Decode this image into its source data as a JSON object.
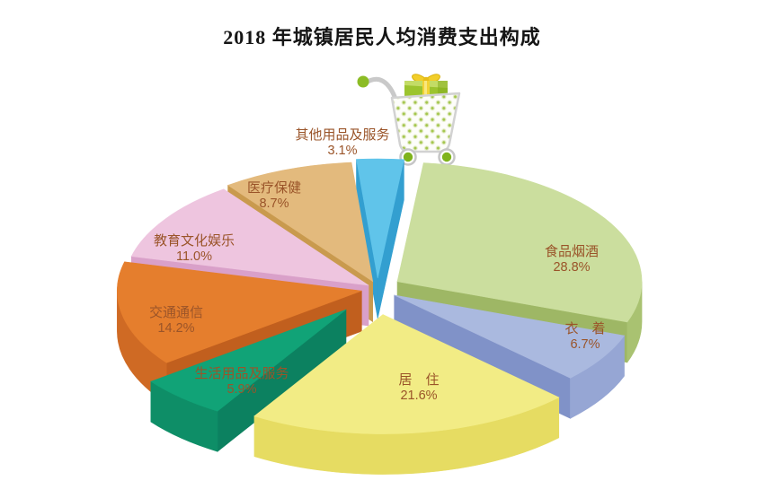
{
  "page": {
    "background": "#ffffff",
    "title": "2018 年城镇居民人均消费支出构成"
  },
  "chart_data": {
    "type": "pie",
    "style": "3d-exploded",
    "title": "2018 年城镇居民人均消费支出构成",
    "unit": "%",
    "total": 100.0,
    "order": "clockwise-from-top",
    "legend": "none",
    "label_text_color": "#9a5429",
    "decoration": "shopping-cart-with-gift-icon",
    "slices": [
      {
        "key": "other-goods-services",
        "label": "其他用品及服务",
        "value": 3.1,
        "display": "3.1%",
        "color": "#60c4ea",
        "side_color": "#41aedd",
        "edge_color": "#339fd0"
      },
      {
        "key": "food-tobacco-alcohol",
        "label": "食品烟酒",
        "value": 28.8,
        "display": "28.8%",
        "color": "#cbde9e",
        "side_color": "#a9c271",
        "edge_color": "#9eb765"
      },
      {
        "key": "clothing",
        "label": "衣　着",
        "value": 6.7,
        "display": "6.7%",
        "color": "#aab9df",
        "side_color": "#96a6d4",
        "edge_color": "#8092c8"
      },
      {
        "key": "housing",
        "label": "居　住",
        "value": 21.6,
        "display": "21.6%",
        "color": "#f2ec85",
        "side_color": "#e6dc62",
        "edge_color": "#ddd155"
      },
      {
        "key": "household-goods-services",
        "label": "生活用品及服务",
        "value": 5.9,
        "display": "5.9%",
        "color": "#11a377",
        "side_color": "#0e8e67",
        "edge_color": "#0c8160"
      },
      {
        "key": "transport-communication",
        "label": "交通通信",
        "value": 14.2,
        "display": "14.2%",
        "color": "#e57e2d",
        "side_color": "#cf6a24",
        "edge_color": "#c15f1e"
      },
      {
        "key": "education-culture-entertainment",
        "label": "教育文化娱乐",
        "value": 11.0,
        "display": "11.0%",
        "color": "#eec5df",
        "side_color": "#e2add1",
        "edge_color": "#d9a0c9"
      },
      {
        "key": "healthcare",
        "label": "医疗保健",
        "value": 8.7,
        "display": "8.7%",
        "color": "#e3ba7d",
        "side_color": "#d2a259",
        "edge_color": "#c99a4e"
      }
    ]
  }
}
